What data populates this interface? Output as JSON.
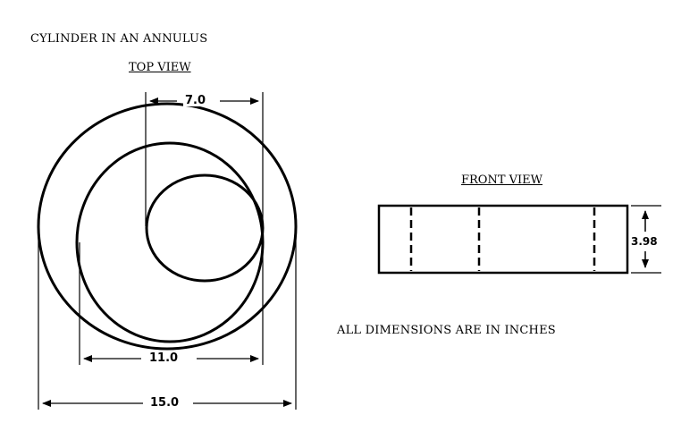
{
  "title": "CYLINDER IN AN ANNULUS",
  "views": {
    "top": {
      "heading": "TOP VIEW",
      "dimensions": {
        "inner_cylinder_diameter": "7.0",
        "inner_annulus_diameter": "11.0",
        "outer_annulus_diameter": "15.0"
      }
    },
    "front": {
      "heading": "FRONT VIEW",
      "dimensions": {
        "height": "3.98"
      }
    }
  },
  "note": "ALL DIMENSIONS ARE IN INCHES",
  "colors": {
    "line": "#000000",
    "background": "#ffffff"
  }
}
